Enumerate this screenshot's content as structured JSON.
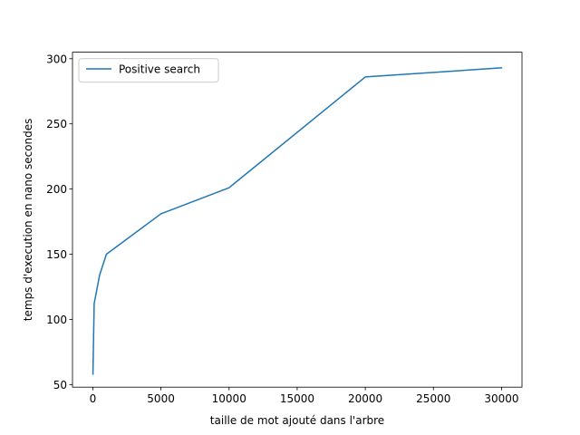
{
  "chart_data": {
    "type": "line",
    "title": "",
    "xlabel": "taille de mot ajouté dans l'arbre",
    "ylabel": "temps d'execution en nano secondes",
    "xlim": [
      -1490,
      31500
    ],
    "ylim": [
      48,
      305
    ],
    "xticks": [
      0,
      5000,
      10000,
      15000,
      20000,
      25000,
      30000
    ],
    "xtick_labels": [
      "0",
      "5000",
      "10000",
      "15000",
      "20000",
      "25000",
      "30000"
    ],
    "yticks": [
      50,
      100,
      150,
      200,
      250,
      300
    ],
    "ytick_labels": [
      "50",
      "100",
      "150",
      "200",
      "250",
      "300"
    ],
    "grid": false,
    "legend_position": "upper-left",
    "series": [
      {
        "name": "Positive search",
        "color": "#1f77b4",
        "x": [
          10,
          100,
          500,
          1000,
          5000,
          10000,
          20000,
          30000
        ],
        "y": [
          58,
          112,
          134,
          150,
          181,
          201,
          286,
          293
        ]
      }
    ]
  }
}
